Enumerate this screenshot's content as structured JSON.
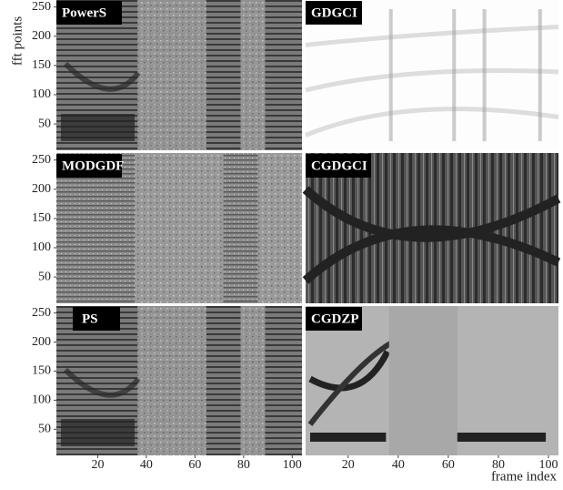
{
  "chart_data": {
    "type": "image_grid",
    "panels": [
      "PowerS",
      "GDGCI",
      "MODGDF",
      "CGDGCI",
      "PS",
      "CGDZP"
    ],
    "xlabel": "frame index",
    "ylabel": "fft points",
    "xlim": [
      3,
      104
    ],
    "ylim": [
      5,
      262
    ],
    "xticks": [
      20,
      40,
      60,
      80,
      100
    ],
    "yticks": [
      50,
      100,
      150,
      200,
      250
    ]
  }
}
